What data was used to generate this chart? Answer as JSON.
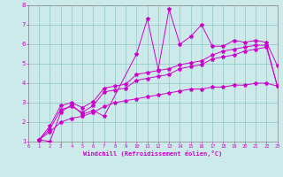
{
  "xlabel": "Windchill (Refroidissement éolien,°C)",
  "xlim": [
    0,
    23
  ],
  "ylim": [
    1,
    8
  ],
  "xticks": [
    0,
    1,
    2,
    3,
    4,
    5,
    6,
    7,
    8,
    9,
    10,
    11,
    12,
    13,
    14,
    15,
    16,
    17,
    18,
    19,
    20,
    21,
    22,
    23
  ],
  "yticks": [
    1,
    2,
    3,
    4,
    5,
    6,
    7,
    8
  ],
  "bg_color": "#cdeaea",
  "line_color": "#cc00cc",
  "grid_color": "#99cccc",
  "series1_x": [
    1,
    2,
    3,
    4,
    5,
    6,
    7,
    10,
    11,
    12,
    13,
    14,
    15,
    16,
    17,
    18,
    19,
    20,
    21,
    22,
    23
  ],
  "series1_y": [
    1.1,
    1.0,
    2.5,
    2.9,
    2.4,
    2.6,
    2.3,
    5.5,
    7.3,
    4.7,
    7.8,
    6.0,
    6.4,
    7.0,
    5.9,
    5.9,
    6.2,
    6.1,
    6.2,
    6.1,
    4.9
  ],
  "series2_x": [
    1,
    2,
    3,
    4,
    5,
    6,
    7,
    8,
    9,
    10,
    11,
    12,
    13,
    14,
    15,
    16,
    17,
    18,
    19,
    20,
    21,
    22,
    23
  ],
  "series2_y": [
    1.1,
    1.8,
    2.85,
    3.0,
    2.75,
    3.05,
    3.75,
    3.85,
    3.95,
    4.45,
    4.55,
    4.65,
    4.75,
    4.95,
    5.05,
    5.15,
    5.45,
    5.65,
    5.75,
    5.85,
    5.95,
    5.95,
    3.85
  ],
  "series3_x": [
    1,
    2,
    3,
    4,
    5,
    6,
    7,
    8,
    9,
    10,
    11,
    12,
    13,
    14,
    15,
    16,
    17,
    18,
    19,
    20,
    21,
    22,
    23
  ],
  "series3_y": [
    1.1,
    1.65,
    2.65,
    2.8,
    2.5,
    2.85,
    3.55,
    3.65,
    3.75,
    4.15,
    4.25,
    4.35,
    4.45,
    4.75,
    4.85,
    4.95,
    5.25,
    5.35,
    5.45,
    5.65,
    5.75,
    5.85,
    3.85
  ],
  "series4_x": [
    1,
    2,
    3,
    4,
    5,
    6,
    7,
    8,
    9,
    10,
    11,
    12,
    13,
    14,
    15,
    16,
    17,
    18,
    19,
    20,
    21,
    22,
    23
  ],
  "series4_y": [
    1.1,
    1.5,
    2.0,
    2.2,
    2.3,
    2.5,
    2.8,
    3.0,
    3.1,
    3.2,
    3.3,
    3.4,
    3.5,
    3.6,
    3.7,
    3.7,
    3.8,
    3.8,
    3.9,
    3.9,
    4.0,
    4.0,
    3.85
  ]
}
